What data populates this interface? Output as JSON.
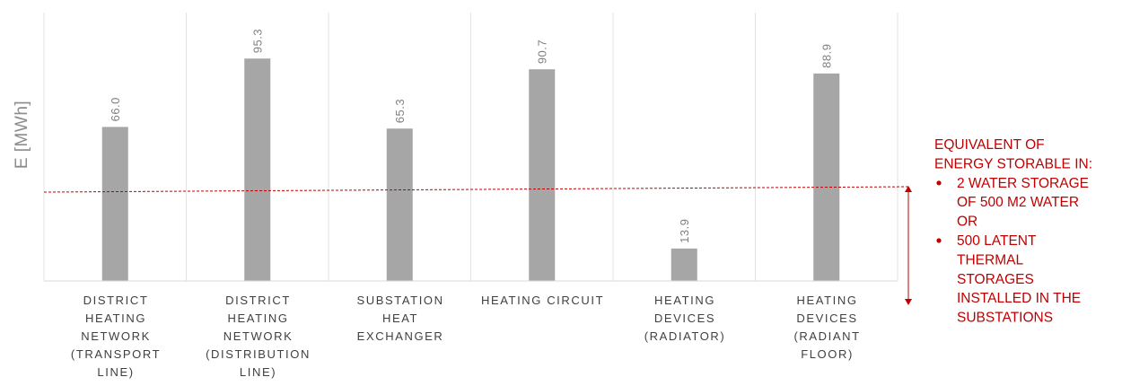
{
  "chart_data": {
    "type": "bar",
    "title": "",
    "xlabel": "",
    "ylabel": "E [MWh]",
    "categories": [
      [
        "DISTRICT",
        "HEATING",
        "NETWORK",
        "(TRANSPORT",
        "LINE)"
      ],
      [
        "DISTRICT",
        "HEATING",
        "NETWORK",
        "(DISTRIBUTION",
        "LINE)"
      ],
      [
        "SUBSTATION",
        "HEAT",
        "EXCHANGER"
      ],
      [
        "HEATING CIRCUIT"
      ],
      [
        "HEATING",
        "DEVICES",
        "(RADIATOR)"
      ],
      [
        "HEATING",
        "DEVICES",
        "(RADIANT",
        "FLOOR)"
      ]
    ],
    "values": [
      66.0,
      95.3,
      65.3,
      90.7,
      13.9,
      88.9
    ],
    "value_labels": [
      "66.0",
      "95.3",
      "65.3",
      "90.7",
      "13.9",
      "88.9"
    ],
    "ylim": [
      0,
      115
    ],
    "grid": "vertical separators",
    "bar_color": "#a6a6a6",
    "reference_line": {
      "value": 40,
      "color": "#c00000",
      "style": "dashed"
    },
    "annotation": {
      "color": "#c00000",
      "lines": [
        {
          "text": "EQUIVALENT OF",
          "bullet": false
        },
        {
          "text": "ENERGY STORABLE IN:",
          "bullet": false
        },
        {
          "text": "2 WATER STORAGE",
          "bullet": true
        },
        {
          "text": "OF 500 M2 WATER",
          "bullet": false
        },
        {
          "text": "OR",
          "bullet": false
        },
        {
          "text": "500 LATENT",
          "bullet": true
        },
        {
          "text": "THERMAL",
          "bullet": false
        },
        {
          "text": "STORAGES",
          "bullet": false
        },
        {
          "text": "INSTALLED IN THE",
          "bullet": false
        },
        {
          "text": "SUBSTATIONS",
          "bullet": false
        }
      ]
    }
  }
}
